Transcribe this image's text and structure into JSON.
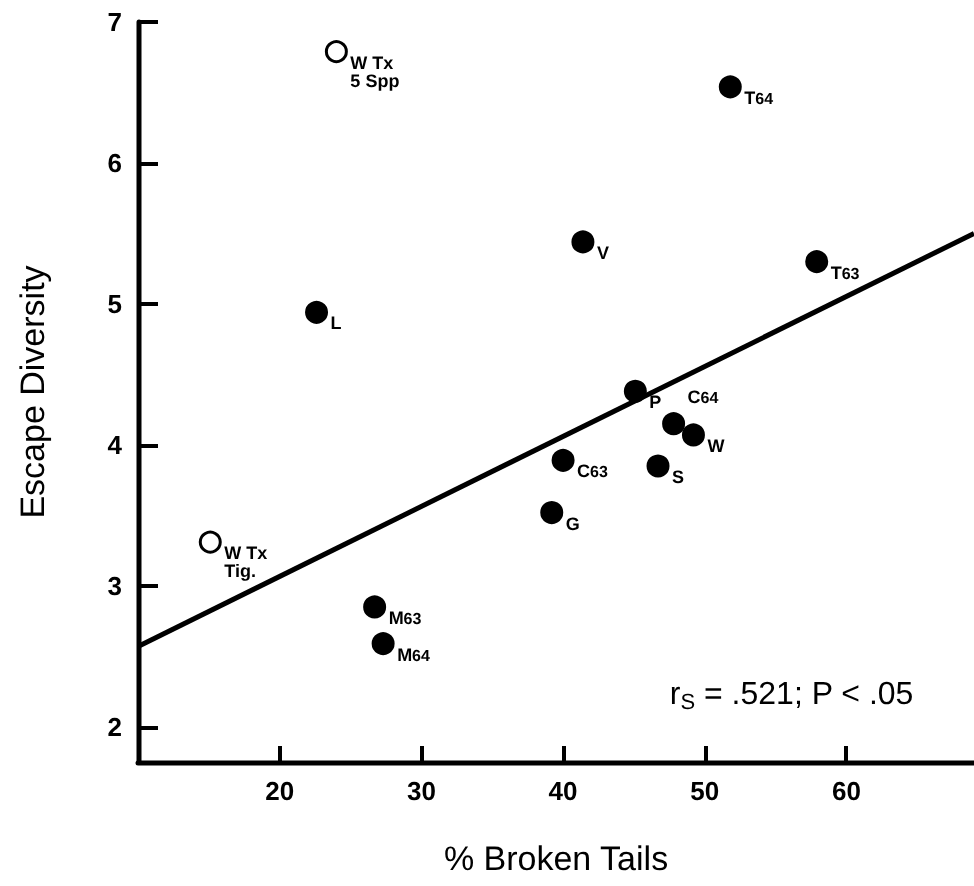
{
  "chart_data": {
    "type": "scatter",
    "xlabel": "% Broken Tails",
    "ylabel": "Escape Diversity",
    "xlim": [
      10,
      69
    ],
    "ylim": [
      1.75,
      7
    ],
    "xticks": [
      20,
      30,
      40,
      50,
      60
    ],
    "yticks": [
      2,
      3,
      4,
      5,
      6,
      7
    ],
    "grid": false,
    "marker": "circle",
    "series": [
      {
        "color": "#000000",
        "x": [
          22.6,
          51.8,
          41.4,
          57.9,
          45.1,
          47.8,
          49.2,
          40.0,
          46.7,
          39.2,
          26.7,
          27.3
        ],
        "values": [
          4.94,
          6.54,
          5.44,
          5.3,
          4.38,
          4.15,
          4.07,
          3.89,
          3.85,
          3.52,
          2.85,
          2.59
        ]
      },
      {
        "color": "#ffffff",
        "x": [
          24.0,
          15.1
        ],
        "values": [
          6.79,
          3.31
        ]
      },
      {
        "type": "line",
        "color": "#000000",
        "marker": "none",
        "x": [
          10,
          69
        ],
        "values": [
          2.57,
          5.5
        ]
      }
    ],
    "annotations": [
      {
        "text": "L",
        "x": 22.6,
        "y": 4.94
      },
      {
        "text": "T$_{64}$",
        "x": 51.8,
        "y": 6.54
      },
      {
        "text": "V",
        "x": 41.4,
        "y": 5.44
      },
      {
        "text": "T$_{63}$",
        "x": 57.9,
        "y": 5.3
      },
      {
        "text": "P",
        "x": 45.1,
        "y": 4.38
      },
      {
        "text": "C$_{64}$",
        "x": 47.8,
        "y": 4.15
      },
      {
        "text": "W",
        "x": 49.2,
        "y": 4.07
      },
      {
        "text": "C$_{63}$",
        "x": 40.0,
        "y": 3.89
      },
      {
        "text": "S",
        "x": 46.7,
        "y": 3.85
      },
      {
        "text": "G",
        "x": 39.2,
        "y": 3.52
      },
      {
        "text": "M$_{63}$",
        "x": 26.7,
        "y": 2.85
      },
      {
        "text": "M$_{64}$",
        "x": 27.3,
        "y": 2.59
      },
      {
        "text": "W Tx\n5 Spp",
        "x": 24.0,
        "y": 6.79
      },
      {
        "text": "W Tx\nTig.",
        "x": 15.1,
        "y": 3.31
      },
      "r$_{S}$ = .521; P < .05"
    ]
  }
}
